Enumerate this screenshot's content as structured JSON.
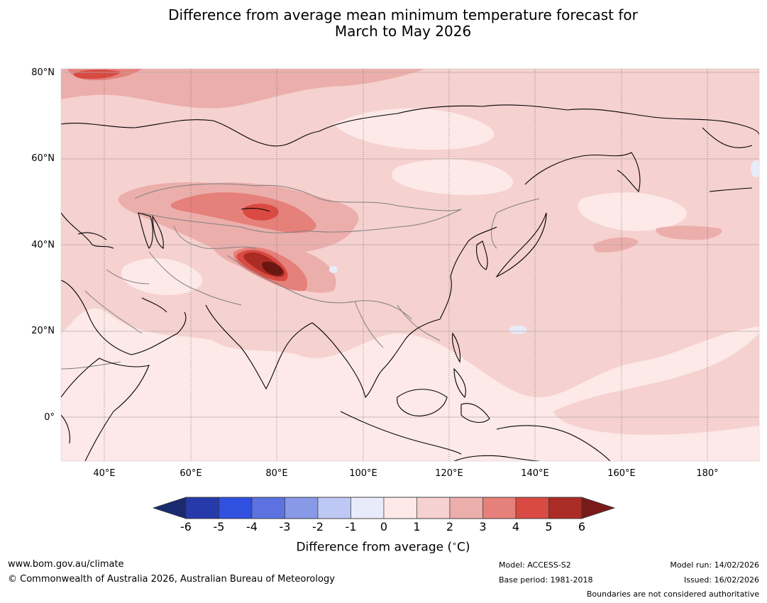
{
  "title": {
    "line1": "Difference from average mean minimum temperature forecast for",
    "line2": "March to May 2026"
  },
  "map": {
    "latitude_labels": [
      "80°N",
      "60°N",
      "40°N",
      "20°N",
      "0°"
    ],
    "longitude_labels": [
      "40°E",
      "60°E",
      "80°E",
      "100°E",
      "120°E",
      "140°E",
      "160°E",
      "180°"
    ],
    "anomaly_regions": [
      {
        "name": "north-atlantic-arctic",
        "value": 3
      },
      {
        "name": "central-asia-kazakhstan",
        "value": 3
      },
      {
        "name": "altai-mountains",
        "value": 4
      },
      {
        "name": "tibet-plateau-west",
        "value": 6
      },
      {
        "name": "western-pacific",
        "value": 1
      },
      {
        "name": "north-pacific-band",
        "value": 2
      }
    ]
  },
  "colorbar": {
    "ticks": [
      "-6",
      "-5",
      "-4",
      "-3",
      "-2",
      "-1",
      "0",
      "1",
      "2",
      "3",
      "4",
      "5",
      "6"
    ],
    "colors": [
      "#273aab",
      "#3050e0",
      "#5b72e0",
      "#8899e8",
      "#bec8f4",
      "#e8ecfa",
      "#fce9e8",
      "#f5d1cf",
      "#ecaeab",
      "#e6807a",
      "#d94a42",
      "#ab2c24"
    ],
    "low_extend_color": "#1a2a70",
    "high_extend_color": "#7a1a18",
    "label": "Difference from average (",
    "label_unit": "C)",
    "label_degree": "∘"
  },
  "footer": {
    "website": "www.bom.gov.au/climate",
    "copyright": "© Commonwealth of Australia 2026, Australian Bureau of Meteorology",
    "model": "Model: ACCESS-S2",
    "base_period": "Base period: 1981-2018",
    "model_run": "Model run: 14/02/2026",
    "issued": "Issued: 16/02/2026",
    "disclaimer": "Boundaries are not considered authoritative"
  }
}
